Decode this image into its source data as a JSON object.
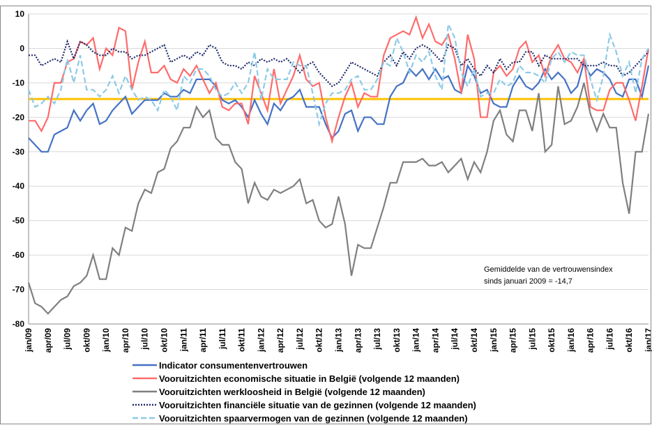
{
  "chart_data": {
    "type": "line",
    "categories": [
      "jan/09",
      null,
      null,
      "apr/09",
      null,
      null,
      "jul/09",
      null,
      null,
      "okt/09",
      null,
      null,
      "jan/10",
      null,
      null,
      "apr/10",
      null,
      null,
      "jul/10",
      null,
      null,
      "okt/10",
      null,
      null,
      "jan/11",
      null,
      null,
      "apr/11",
      null,
      null,
      "jul/11",
      null,
      null,
      "okt/11",
      null,
      null,
      "jan/12",
      null,
      null,
      "apr/12",
      null,
      null,
      "jul/12",
      null,
      null,
      "okt/12",
      null,
      null,
      "jan/13",
      null,
      null,
      "apr/13",
      null,
      null,
      "jul/13",
      null,
      null,
      "okt/13",
      null,
      null,
      "jan/14",
      null,
      null,
      "apr/14",
      null,
      null,
      "jul/14",
      null,
      null,
      "okt/14",
      null,
      null,
      "jan/15",
      null,
      null,
      "apr/15",
      null,
      null,
      "jul/15",
      null,
      null,
      "okt/15",
      null,
      null,
      "jan/16",
      null,
      null,
      "apr/16",
      null,
      null,
      "jul/16",
      null,
      null,
      "okt/16",
      null,
      null,
      "jan/17"
    ],
    "series": [
      {
        "name": "Indicator consumentenvertrouwen",
        "color": "#4472c4",
        "style": "solid",
        "values": [
          -26,
          -28,
          -30,
          -30,
          -25,
          -24,
          -23,
          -18,
          -21,
          -18,
          -16,
          -22,
          -21,
          -18,
          -16,
          -14,
          -19,
          -17,
          -15,
          -15,
          -15,
          -13,
          -14,
          -14,
          -12,
          -13,
          -9,
          -9,
          -9,
          -11,
          -15,
          -16,
          -15,
          -17,
          -20,
          -15,
          -19,
          -22,
          -16,
          -18,
          -15,
          -14,
          -12,
          -17,
          -17,
          -17,
          -22,
          -26,
          -24,
          -19,
          -18,
          -24,
          -20,
          -20,
          -22,
          -22,
          -14,
          -11,
          -10,
          -6,
          -8,
          -6,
          -9,
          -6,
          -9,
          -8,
          -12,
          -13,
          -5,
          -8,
          -13,
          -12,
          -16,
          -17,
          -17,
          -11,
          -8,
          -11,
          -12,
          -10,
          -6,
          -9,
          -7,
          -9,
          -13,
          -11,
          -4,
          -8,
          -6,
          -7,
          -9,
          -13,
          -14,
          -9,
          -9,
          -14,
          -5
        ]
      },
      {
        "name": "Vooruitzichten economische situatie in België (volgende 12 maanden)",
        "color": "#ff6b6b",
        "style": "solid",
        "values": [
          -21,
          -21,
          -24,
          -20,
          -10,
          -10,
          -4,
          -3,
          2,
          1,
          3,
          -6,
          0,
          -2,
          6,
          5,
          -12,
          -4,
          2,
          -7,
          -7,
          -5,
          -9,
          -10,
          -6,
          -8,
          -5,
          -9,
          -13,
          -10,
          -17,
          -18,
          -16,
          -16,
          -22,
          -8,
          -13,
          -18,
          -6,
          -16,
          -12,
          -8,
          -2,
          -9,
          -11,
          -10,
          -20,
          -27,
          -20,
          -14,
          -10,
          -17,
          -13,
          -14,
          -14,
          -2,
          3,
          4,
          5,
          4,
          9,
          3,
          7,
          2,
          1,
          4,
          -3,
          -13,
          4,
          -3,
          -20,
          -20,
          -7,
          -5,
          -8,
          -6,
          0,
          2,
          -4,
          -2,
          -8,
          -2,
          1,
          -3,
          -4,
          -7,
          -3,
          -17,
          -18,
          -18,
          -12,
          -10,
          -10,
          -15,
          -21,
          -11,
          0
        ]
      },
      {
        "name": "Vooruitzichten werkloosheid in België (volgende 12 maanden)",
        "color": "#7f7f7f",
        "style": "solid",
        "values": [
          -68,
          -74,
          -75,
          -77,
          -75,
          -73,
          -72,
          -69,
          -68,
          -66,
          -60,
          -67,
          -67,
          -58,
          -60,
          -52,
          -53,
          -45,
          -41,
          -42,
          -36,
          -35,
          -29,
          -27,
          -23,
          -23,
          -17,
          -20,
          -18,
          -26,
          -28,
          -28,
          -33,
          -35,
          -45,
          -39,
          -43,
          -44,
          -41,
          -42,
          -41,
          -40,
          -38,
          -45,
          -44,
          -50,
          -52,
          -51,
          -43,
          -51,
          -66,
          -57,
          -58,
          -58,
          -52,
          -46,
          -39,
          -39,
          -33,
          -33,
          -33,
          -32,
          -34,
          -34,
          -33,
          -36,
          -34,
          -32,
          -38,
          -33,
          -36,
          -30,
          -21,
          -18,
          -25,
          -27,
          -18,
          -18,
          -24,
          -13,
          -30,
          -28,
          -11,
          -22,
          -21,
          -17,
          -10,
          -19,
          -24,
          -19,
          -23,
          -23,
          -39,
          -48,
          -30,
          -30,
          -19
        ]
      },
      {
        "name": "Vooruitzichten financiële situatie van de gezinnen (volgende 12 maanden)",
        "color": "#1f2a6b",
        "style": "dotted",
        "values": [
          -2,
          -2,
          -5,
          -4,
          -3,
          -4,
          2,
          -3,
          2,
          1,
          -1,
          -2,
          -2,
          0,
          -1,
          -1,
          -3,
          -2,
          -2,
          -1,
          0,
          1,
          -4,
          -3,
          -2,
          -3,
          -1,
          -2,
          1,
          0,
          -4,
          -5,
          -5,
          -6,
          -4,
          -5,
          -3,
          -4,
          -3,
          -4,
          -3,
          -5,
          -7,
          -5,
          -4,
          -7,
          -9,
          -11,
          -10,
          -7,
          -4,
          -5,
          -6,
          -7,
          -8,
          -4,
          -2,
          -5,
          -1,
          -3,
          0,
          1,
          0,
          -2,
          -4,
          1,
          0,
          -5,
          -3,
          -6,
          -8,
          -5,
          -7,
          -3,
          -6,
          -4,
          -4,
          -1,
          -1,
          -5,
          -2,
          -3,
          -3,
          -3,
          -3,
          -3,
          -5,
          -5,
          -5,
          -4,
          -5,
          -5,
          -8,
          -7,
          -5,
          -3,
          -1
        ]
      },
      {
        "name": "Vooruitzichten spaarvermogen van de gezinnen (volgende 12 maanden)",
        "color": "#8ecae6",
        "style": "dashed",
        "values": [
          -12,
          -17,
          -16,
          -14,
          -16,
          -12,
          -3,
          -10,
          -2,
          -12,
          -12,
          -14,
          -12,
          -8,
          -13,
          -8,
          -12,
          -15,
          -14,
          -15,
          -18,
          -12,
          -14,
          -18,
          -8,
          -10,
          -6,
          -6,
          -8,
          -12,
          -14,
          -13,
          -10,
          -13,
          -10,
          -1,
          -15,
          -6,
          -9,
          -9,
          -9,
          -4,
          -5,
          -5,
          -13,
          -22,
          -16,
          -13,
          -13,
          -12,
          -9,
          -8,
          -12,
          -12,
          -9,
          -4,
          -5,
          3,
          -1,
          -7,
          -2,
          -4,
          -1,
          -8,
          -12,
          7,
          3,
          -7,
          -11,
          -6,
          -14,
          -13,
          -13,
          -9,
          -11,
          -10,
          -5,
          -7,
          -7,
          -8,
          -10,
          -3,
          -1,
          -4,
          -1,
          -2,
          -2,
          -9,
          -15,
          -8,
          4,
          -1,
          -8,
          -4,
          -13,
          -3,
          0
        ]
      }
    ],
    "reference_line": {
      "value": -14.7,
      "color": "#ffc000"
    },
    "annotation": [
      "Gemiddelde van de vertrouwensindex",
      "sinds januari 2009  =  -14,7"
    ],
    "ylim": [
      -80,
      10
    ],
    "yticks": [
      10,
      0,
      -10,
      -20,
      -30,
      -40,
      -50,
      -60,
      -70,
      -80
    ],
    "grid": true
  }
}
